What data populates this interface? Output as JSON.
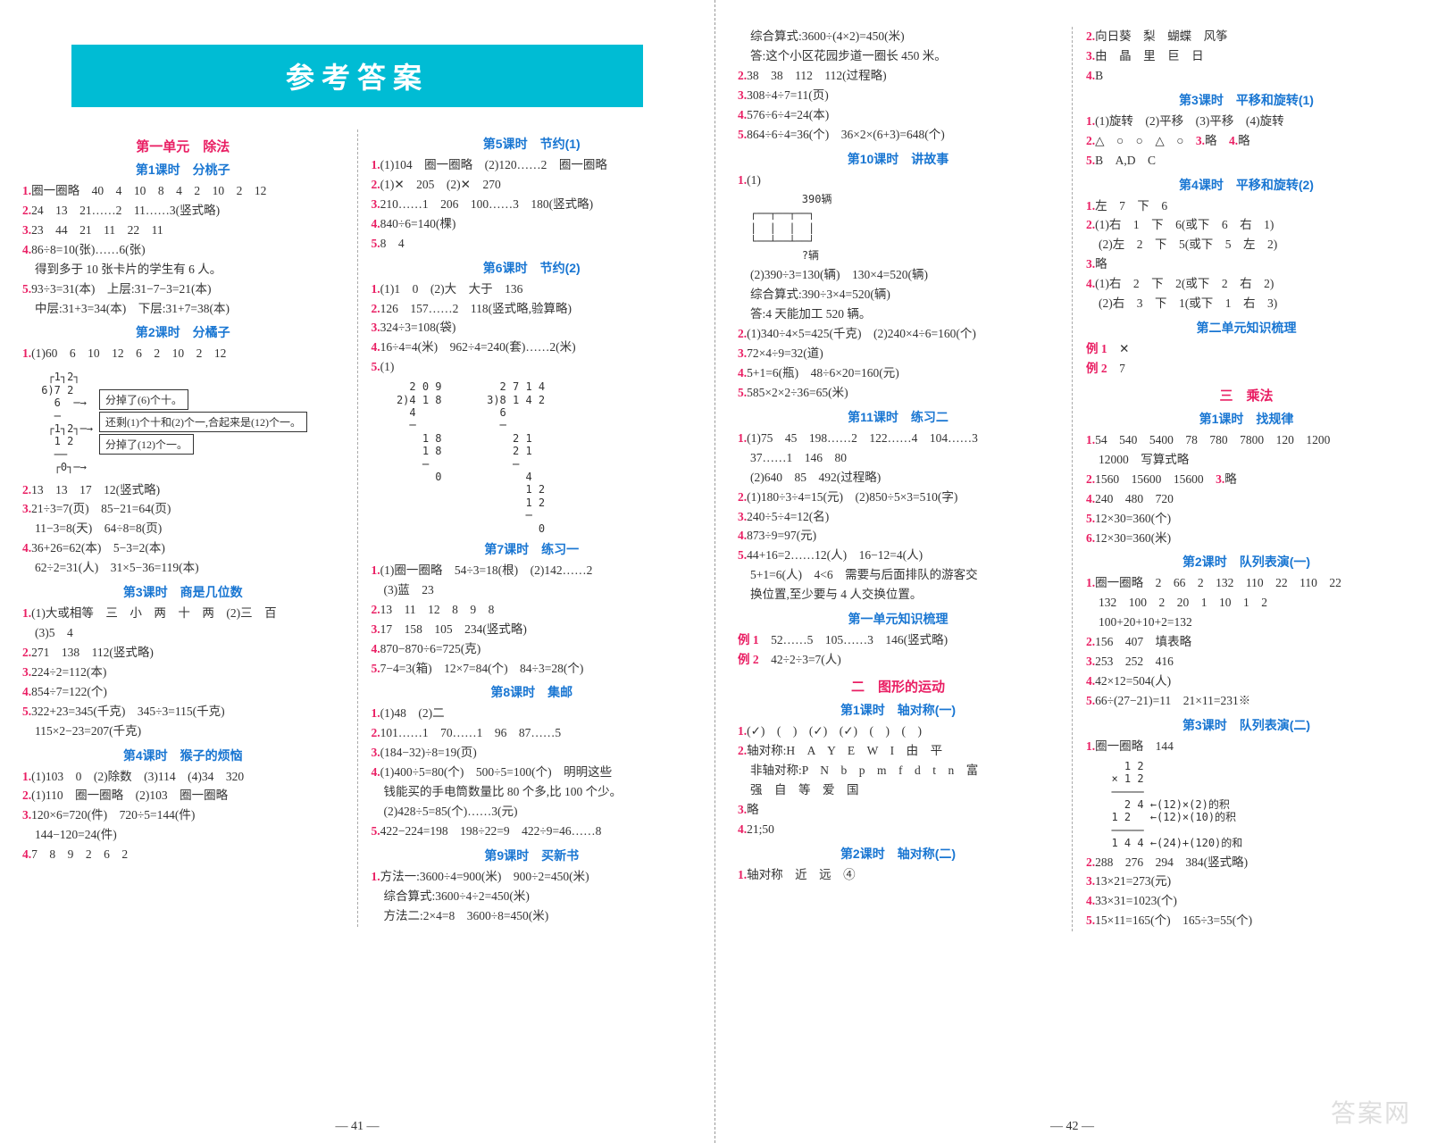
{
  "banner": "参考答案",
  "page_left_num": "— 41 —",
  "page_right_num": "— 42 —",
  "watermark": "答案网",
  "left_page": {
    "col1": {
      "unit1": "第一单元　除法",
      "l1_title": "第1课时　分桃子",
      "l1_1": "圈一圈略　40　4　10　8　4　2　10　2　12",
      "l1_2": "24　13　21……2　11……3(竖式略)",
      "l1_3": "23　44　21　11　22　11",
      "l1_4": "86÷8=10(张)……6(张)",
      "l1_4b": "得到多于 10 张卡片的学生有 6 人。",
      "l1_5": "93÷3=31(本)　上层:31−7−3=21(本)",
      "l1_5b": "中层:31+3=34(本)　下层:31+7=38(本)",
      "l2_title": "第2课时　分橘子",
      "l2_1": "(1)60　6　10　12　6　2　10　2　12",
      "l2_diag1": "分掉了(6)个十。",
      "l2_diag2": "还剩(1)个十和(2)个一,合起来是(12)个一。",
      "l2_diag3": "分掉了(12)个一。",
      "l2_2": "13　13　17　12(竖式略)",
      "l2_3": "21÷3=7(页)　85−21=64(页)",
      "l2_3b": "11−3=8(天)　64÷8=8(页)",
      "l2_4": "36+26=62(本)　5−3=2(本)",
      "l2_4b": "62÷2=31(人)　31×5−36=119(本)",
      "l3_title": "第3课时　商是几位数",
      "l3_1": "(1)大或相等　三　小　两　十　两　(2)三　百",
      "l3_1b": "(3)5　4",
      "l3_2": "271　138　112(竖式略)",
      "l3_3": "224÷2=112(本)",
      "l3_4": "854÷7=122(个)",
      "l3_5": "322+23=345(千克)　345÷3=115(千克)",
      "l3_5b": "115×2−23=207(千克)",
      "l4_title": "第4课时　猴子的烦恼",
      "l4_1": "(1)103　0　(2)除数　(3)114　(4)34　320",
      "l4_2": "(1)110　圈一圈略　(2)103　圈一圈略",
      "l4_3": "120×6=720(件)　720÷5=144(件)",
      "l4_3b": "144−120=24(件)",
      "l4_4": "7　8　9　2　6　2"
    },
    "col2": {
      "l5_title": "第5课时　节约(1)",
      "l5_1": "(1)104　圈一圈略　(2)120……2　圈一圈略",
      "l5_2": "(1)✕　205　(2)✕　270",
      "l5_3": "210……1　206　100……3　180(竖式略)",
      "l5_4": "840÷6=140(棵)",
      "l5_5": "8　4",
      "l6_title": "第6课时　节约(2)",
      "l6_1": "(1)1　0　(2)大　大于　136",
      "l6_2": "126　157……2　118(竖式略,验算略)",
      "l6_3": "324÷3=108(袋)",
      "l6_4": "16÷4=4(米)　962÷4=240(套)……2(米)",
      "l6_5": "(1)",
      "l6_div": "    2 0 9         2 7 1 4\n  2)4 1 8       3)8 1 4 2\n    4             6\n    ─             ─\n      1 8           2 1\n      1 8           2 1\n      ─             ─\n        0             4\n                      1 2\n                      1 2\n                      ─\n                        0",
      "l7_title": "第7课时　练习一",
      "l7_1": "(1)圈一圈略　54÷3=18(根)　(2)142……2",
      "l7_1b": "(3)蓝　23",
      "l7_2": "13　11　12　8　9　8",
      "l7_3": "17　158　105　234(竖式略)",
      "l7_4": "870−870÷6=725(克)",
      "l7_5": "7−4=3(箱)　12×7=84(个)　84÷3=28(个)",
      "l8_title": "第8课时　集邮",
      "l8_1": "(1)48　(2)二",
      "l8_2": "101……1　70……1　96　87……5",
      "l8_3": "(184−32)÷8=19(页)",
      "l8_4": "(1)400÷5=80(个)　500÷5=100(个)　明明这些",
      "l8_4b": "钱能买的手电筒数量比 80 个多,比 100 个少。",
      "l8_4c": "(2)428÷5=85(个)……3(元)",
      "l8_5": "422−224=198　198÷22=9　422÷9=46……8",
      "l9_title": "第9课时　买新书",
      "l9_1": "方法一:3600÷4=900(米)　900÷2=450(米)",
      "l9_1b": "综合算式:3600÷4÷2=450(米)",
      "l9_1c": "方法二:2×4=8　3600÷8=450(米)"
    }
  },
  "right_page": {
    "col1": {
      "l9_1d": "综合算式:3600÷(4×2)=450(米)",
      "l9_1e": "答:这个小区花园步道一圈长 450 米。",
      "l9_2": "38　38　112　112(过程略)",
      "l9_3": "308÷4÷7=11(页)",
      "l9_4": "576÷6÷4=24(本)",
      "l9_5": "864÷6÷4=36(个)　36×2×(6+3)=648(个)",
      "l10_title": "第10课时　讲故事",
      "l10_1": "(1)",
      "l10_bracket": "        390辆\n┌──┬──┬──┐\n|  |  |  |\n└──┴──┴──┘\n        ?辆",
      "l10_1b": "(2)390÷3=130(辆)　130×4=520(辆)",
      "l10_1c": "综合算式:390÷3×4=520(辆)",
      "l10_1d": "答:4 天能加工 520 辆。",
      "l10_2": "(1)340÷4×5=425(千克)　(2)240×4÷6=160(个)",
      "l10_3": "72×4÷9=32(道)",
      "l10_4": "5+1=6(瓶)　48÷6×20=160(元)",
      "l10_5": "585×2×2÷36=65(米)",
      "l11_title": "第11课时　练习二",
      "l11_1": "(1)75　45　198……2　122……4　104……3",
      "l11_1b": "37……1　146　80",
      "l11_1c": "(2)640　85　492(过程略)",
      "l11_2": "(1)180÷3÷4=15(元)　(2)850÷5×3=510(字)",
      "l11_3": "240÷5÷4=12(名)",
      "l11_4": "873÷9=97(元)",
      "l11_5": "44+16=2……12(人)　16−12=4(人)",
      "l11_5b": "5+1=6(人)　4<6　需要与后面排队的游客交",
      "l11_5c": "换位置,至少要与 4 人交换位置。",
      "u1_summary_title": "第一单元知识梳理",
      "u1_ex1": "52……5　105……3　146(竖式略)",
      "u1_ex2": "42÷2÷3=7(人)",
      "unit2": "二　图形的运动",
      "l2_1_title": "第1课时　轴对称(一)",
      "l2_1_1": "(✓)　(　)　(✓)　(✓)　(　)　(　)",
      "l2_1_2": "轴对称:H　A　Y　E　W　I　由　平",
      "l2_1_2b": "非轴对称:P　N　b　p　m　f　d　t　n　富",
      "l2_1_2c": "强　自　等　爱　国",
      "l2_1_3": "略",
      "l2_1_4": "21;50",
      "l2_2_title": "第2课时　轴对称(二)",
      "l2_2_1": "轴对称　近　远　④"
    },
    "col2": {
      "l2_2_2": "向日葵　梨　蝴蝶　风筝",
      "l2_2_3": "由　晶　里　巨　日",
      "l2_2_4": "B",
      "l2_3_title": "第3课时　平移和旋转(1)",
      "l2_3_1": "(1)旋转　(2)平移　(3)平移　(4)旋转",
      "l2_3_2": "△　○　○　△　○",
      "l2_3_3": "略",
      "l2_3_4": "略",
      "l2_3_5": "B　A,D　C",
      "l2_4_title": "第4课时　平移和旋转(2)",
      "l2_4_1": "左　7　下　6",
      "l2_4_2": "(1)右　1　下　6(或下　6　右　1)",
      "l2_4_2b": "(2)左　2　下　5(或下　5　左　2)",
      "l2_4_3": "略",
      "l2_4_4": "(1)右　2　下　2(或下　2　右　2)",
      "l2_4_4b": "(2)右　3　下　1(或下　1　右　3)",
      "u2_summary_title": "第二单元知识梳理",
      "u2_ex1": "✕",
      "u2_ex2": "7",
      "unit3": "三　乘法",
      "l3_1t": "第1课时　找规律",
      "l3_1_1": "54　540　5400　78　780　7800　120　1200",
      "l3_1_1b": "12000　写算式略",
      "l3_1_2": "1560　15600　15600",
      "l3_1_3": "略",
      "l3_1_4": "240　480　720",
      "l3_1_5": "12×30=360(个)",
      "l3_1_6": "12×30=360(米)",
      "l3_2t": "第2课时　队列表演(一)",
      "l3_2_1": "圈一圈略　2　66　2　132　110　22　110　22",
      "l3_2_1b": "132　100　2　20　1　10　1　2",
      "l3_2_1c": "100+20+10+2=132",
      "l3_2_2": "156　407　填表略",
      "l3_2_3": "253　252　416",
      "l3_2_4": "42×12=504(人)",
      "l3_2_5": "66÷(27−21)=11　21×11=231※",
      "l3_3t": "第3课时　队列表演(二)",
      "l3_3_1": "圈一圈略　144",
      "l3_3_div": "    1 2\n  × 1 2\n  ─────\n    2 4 ←(12)×(2)的积\n  1 2   ←(12)×(10)的积\n  ─────\n  1 4 4 ←(24)+(120)的和",
      "l3_3_2": "288　276　294　384(竖式略)",
      "l3_3_3": "13×21=273(元)",
      "l3_3_4": "33×31=1023(个)",
      "l3_3_5": "15×11=165(个)　165÷3=55(个)"
    }
  }
}
